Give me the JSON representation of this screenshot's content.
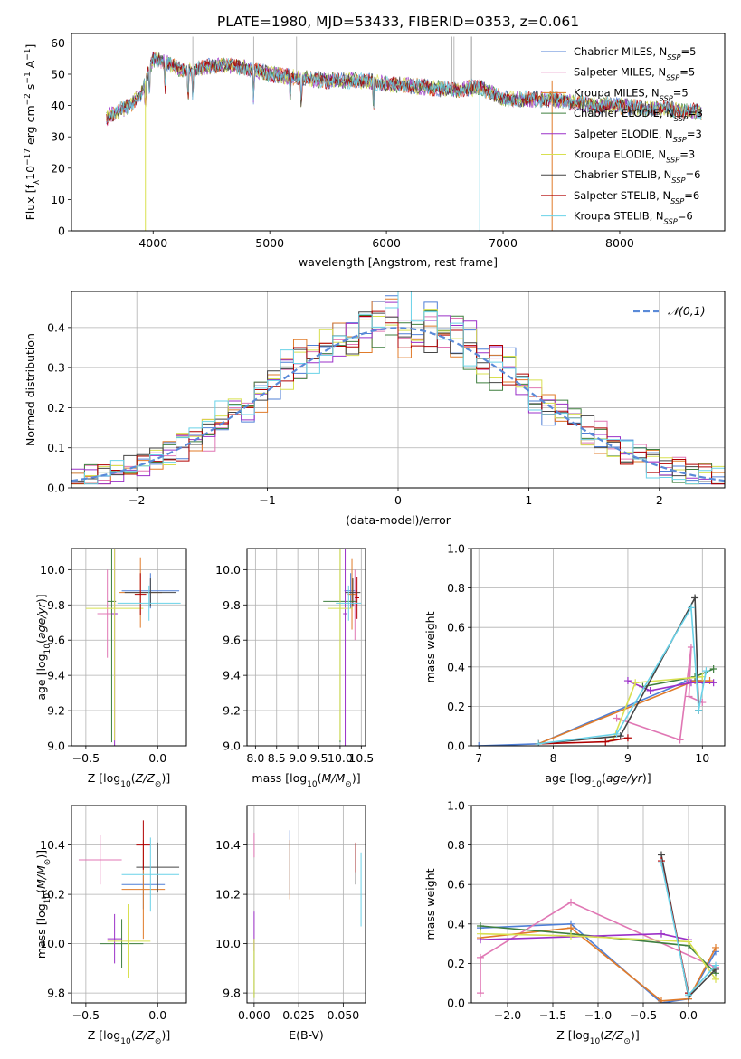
{
  "figure_title": "PLATE=1980, MJD=53433, FIBERID=0353, z=0.061",
  "model_colors": [
    "#4f7fd6",
    "#e077b4",
    "#e07b2a",
    "#3f7f3f",
    "#9b30c8",
    "#d8e050",
    "#444444",
    "#b00000",
    "#6ad2e8"
  ],
  "chart_data": [
    {
      "id": "spectrum",
      "type": "line",
      "title": "PLATE=1980, MJD=53433, FIBERID=0353, z=0.061",
      "xlabel": "wavelength [Angstrom, rest frame]",
      "ylabel": "Flux [f_λ10^-17 erg cm^-2 s^-1 A^-1]",
      "xlim": [
        3300,
        8900
      ],
      "ylim": [
        0,
        63
      ],
      "xticks": [
        4000,
        5000,
        6000,
        7000,
        8000
      ],
      "yticks": [
        0,
        10,
        20,
        30,
        40,
        50,
        60
      ],
      "legend_position": "upper right",
      "grid": false,
      "series": [
        {
          "name": "Chabrier MILES, N_SSP=5"
        },
        {
          "name": "Salpeter MILES, N_SSP=5"
        },
        {
          "name": "Kroupa MILES, N_SSP=5"
        },
        {
          "name": "Chabrier ELODIE, N_SSP=3"
        },
        {
          "name": "Salpeter ELODIE, N_SSP=3"
        },
        {
          "name": "Kroupa ELODIE, N_SSP=3"
        },
        {
          "name": "Chabrier STELIB, N_SSP=6"
        },
        {
          "name": "Salpeter STELIB, N_SSP=6"
        },
        {
          "name": "Kroupa STELIB, N_SSP=6"
        }
      ],
      "continuum": {
        "x": [
          3600,
          3700,
          3800,
          3900,
          4000,
          4100,
          4200,
          4300,
          4400,
          4600,
          4800,
          5000,
          5200,
          5500,
          5800,
          6000,
          6300,
          6600,
          6800,
          7000,
          7200,
          7400,
          7600,
          7800,
          8000,
          8200,
          8400,
          8600,
          8700
        ],
        "y": [
          36,
          38,
          40,
          44,
          55,
          54,
          52,
          51,
          52,
          53,
          52,
          50,
          49,
          48,
          48,
          47,
          46,
          45,
          46,
          42,
          42,
          42,
          41,
          40,
          40,
          39,
          39,
          38,
          38
        ]
      }
    },
    {
      "id": "residuals",
      "type": "histogram",
      "xlabel": "(data-model)/error",
      "ylabel": "Normed distribution",
      "xlim": [
        -2.5,
        2.5
      ],
      "ylim": [
        0,
        0.49
      ],
      "xticks": [
        -2,
        -1,
        0,
        1,
        2
      ],
      "yticks": [
        0.0,
        0.1,
        0.2,
        0.3,
        0.4
      ],
      "grid": true,
      "legend": "𝒩(0,1)",
      "legend_position": "upper right",
      "normal_curve": {
        "mean": 0,
        "sigma": 1,
        "color": "#5a8ad8"
      },
      "bins": {
        "start": -2.5,
        "width": 0.1
      }
    },
    {
      "id": "age_vs_Z",
      "type": "errorbar",
      "xlabel": "Z [log10(Z/Z_sun)]",
      "ylabel": "age [log10(age/yr)]",
      "xlim": [
        -0.6,
        0.2
      ],
      "ylim": [
        9.0,
        10.12
      ],
      "xticks": [
        -0.5,
        0.0
      ],
      "yticks": [
        9.0,
        9.2,
        9.4,
        9.6,
        9.8,
        10.0
      ],
      "grid": true,
      "points": [
        {
          "x": -0.05,
          "y": 9.88,
          "xerr": 0.2,
          "yerr": 0.1
        },
        {
          "x": -0.35,
          "y": 9.75,
          "xerr": 0.07,
          "yerr": 0.25
        },
        {
          "x": -0.12,
          "y": 9.87,
          "xerr": 0.15,
          "yerr": 0.2
        },
        {
          "x": -0.32,
          "y": 9.82,
          "xerr": 0.03,
          "yerr": 0.8
        },
        {
          "x": -0.3,
          "y": 9.75,
          "xerr": 0.02,
          "yerr": 0.75
        },
        {
          "x": -0.3,
          "y": 9.78,
          "xerr": 0.2,
          "yerr": 0.75
        },
        {
          "x": -0.05,
          "y": 9.87,
          "xerr": 0.18,
          "yerr": 0.08
        },
        {
          "x": -0.12,
          "y": 9.86,
          "xerr": 0.04,
          "yerr": 0.12
        },
        {
          "x": -0.06,
          "y": 9.81,
          "xerr": 0.22,
          "yerr": 0.1
        }
      ]
    },
    {
      "id": "age_vs_mass",
      "type": "errorbar",
      "xlabel": "mass [log10(M/M_sun)]",
      "xlim": [
        7.8,
        10.6
      ],
      "ylim": [
        9.0,
        10.12
      ],
      "xticks": [
        8.0,
        8.5,
        9.0,
        9.5,
        10.0,
        10.5
      ],
      "yticks": [
        9.0,
        9.2,
        9.4,
        9.6,
        9.8,
        10.0
      ],
      "grid": true,
      "points": [
        {
          "x": 10.25,
          "y": 9.88,
          "xerr": 0.15,
          "yerr": 0.1
        },
        {
          "x": 10.35,
          "y": 9.8,
          "xerr": 0.05,
          "yerr": 0.2
        },
        {
          "x": 10.28,
          "y": 9.86,
          "xerr": 0.1,
          "yerr": 0.2
        },
        {
          "x": 10.0,
          "y": 9.82,
          "xerr": 0.4,
          "yerr": 0.8
        },
        {
          "x": 10.12,
          "y": 9.75,
          "xerr": 0.05,
          "yerr": 0.75
        },
        {
          "x": 10.0,
          "y": 9.78,
          "xerr": 0.3,
          "yerr": 0.75
        },
        {
          "x": 10.3,
          "y": 9.87,
          "xerr": 0.18,
          "yerr": 0.08
        },
        {
          "x": 10.4,
          "y": 9.84,
          "xerr": 0.05,
          "yerr": 0.12
        },
        {
          "x": 10.2,
          "y": 9.81,
          "xerr": 0.3,
          "yerr": 0.1
        }
      ]
    },
    {
      "id": "massweight_vs_age",
      "type": "line",
      "xlabel": "age [log10(age/yr)]",
      "ylabel": "mass weight",
      "xlim": [
        6.9,
        10.3
      ],
      "ylim": [
        0.0,
        1.0
      ],
      "xticks": [
        7,
        8,
        9,
        10
      ],
      "yticks": [
        0.0,
        0.2,
        0.4,
        0.6,
        0.8,
        1.0
      ],
      "grid": true,
      "series": [
        {
          "x": [
            7.0,
            7.8,
            9.8,
            10.0
          ],
          "y": [
            0.0,
            0.01,
            0.33,
            0.33
          ]
        },
        {
          "x": [
            8.85,
            9.7,
            9.85,
            9.82,
            10.0
          ],
          "y": [
            0.14,
            0.03,
            0.5,
            0.25,
            0.22
          ]
        },
        {
          "x": [
            7.8,
            9.9,
            10.1
          ],
          "y": [
            0.01,
            0.33,
            0.33
          ]
        },
        {
          "x": [
            9.2,
            9.9,
            10.15
          ],
          "y": [
            0.3,
            0.35,
            0.39
          ]
        },
        {
          "x": [
            9.0,
            9.3,
            9.85,
            10.15
          ],
          "y": [
            0.33,
            0.28,
            0.32,
            0.32
          ]
        },
        {
          "x": [
            8.8,
            9.1,
            10.0
          ],
          "y": [
            0.03,
            0.32,
            0.35
          ]
        },
        {
          "x": [
            7.8,
            8.9,
            9.9,
            9.95
          ],
          "y": [
            0.01,
            0.05,
            0.75,
            0.18
          ]
        },
        {
          "x": [
            7.8,
            8.7,
            9.0
          ],
          "y": [
            0.01,
            0.02,
            0.04
          ]
        },
        {
          "x": [
            7.8,
            8.85,
            9.85,
            9.95,
            10.05
          ],
          "y": [
            0.01,
            0.06,
            0.7,
            0.18,
            0.38
          ]
        }
      ]
    },
    {
      "id": "mass_vs_Z",
      "type": "errorbar",
      "xlabel": "Z [log10(Z/Z_sun)]",
      "ylabel": "mass [log10(M/M_sun)]",
      "xlim": [
        -0.6,
        0.2
      ],
      "ylim": [
        9.76,
        10.56
      ],
      "xticks": [
        -0.5,
        0.0
      ],
      "yticks": [
        9.8,
        10.0,
        10.2,
        10.4
      ],
      "grid": true,
      "points": [
        {
          "x": -0.1,
          "y": 10.24,
          "xerr": 0.15,
          "yerr": 0.1
        },
        {
          "x": -0.4,
          "y": 10.34,
          "xerr": 0.15,
          "yerr": 0.1
        },
        {
          "x": -0.1,
          "y": 10.22,
          "xerr": 0.15,
          "yerr": 0.2
        },
        {
          "x": -0.25,
          "y": 10.0,
          "xerr": 0.15,
          "yerr": 0.1
        },
        {
          "x": -0.3,
          "y": 10.02,
          "xerr": 0.05,
          "yerr": 0.1
        },
        {
          "x": -0.2,
          "y": 10.01,
          "xerr": 0.15,
          "yerr": 0.15
        },
        {
          "x": 0.0,
          "y": 10.31,
          "xerr": 0.15,
          "yerr": 0.1
        },
        {
          "x": -0.1,
          "y": 10.4,
          "xerr": 0.05,
          "yerr": 0.1
        },
        {
          "x": -0.05,
          "y": 10.28,
          "xerr": 0.2,
          "yerr": 0.15
        }
      ]
    },
    {
      "id": "mass_vs_EBV",
      "type": "errorbar",
      "xlabel": "E(B-V)",
      "xlim": [
        -0.004,
        0.0625
      ],
      "ylim": [
        9.76,
        10.56
      ],
      "xticks": [
        0.0,
        0.025,
        0.05
      ],
      "yticks": [
        9.8,
        10.0,
        10.2,
        10.4
      ],
      "grid": true,
      "points": [
        {
          "x": 0.02,
          "y": 10.33,
          "yerr": 0.13
        },
        {
          "x": 0.0,
          "y": 10.4,
          "yerr": 0.05
        },
        {
          "x": 0.02,
          "y": 10.3,
          "yerr": 0.12
        },
        {
          "x": 0.0,
          "y": 9.9,
          "yerr": 0.12
        },
        {
          "x": 0.0,
          "y": 10.05,
          "yerr": 0.08
        },
        {
          "x": 0.0,
          "y": 9.9,
          "yerr": 0.12
        },
        {
          "x": 0.057,
          "y": 10.32,
          "yerr": 0.08
        },
        {
          "x": 0.057,
          "y": 10.35,
          "yerr": 0.06
        },
        {
          "x": 0.06,
          "y": 10.22,
          "yerr": 0.15
        }
      ]
    },
    {
      "id": "massweight_vs_Z",
      "type": "line",
      "xlabel": "Z [log10(Z/Z_sun)]",
      "ylabel": "mass weight",
      "xlim": [
        -2.4,
        0.4
      ],
      "ylim": [
        0.0,
        1.0
      ],
      "xticks": [
        -2.0,
        -1.5,
        -1.0,
        -0.5,
        0.0
      ],
      "yticks": [
        0.0,
        0.2,
        0.4,
        0.6,
        0.8,
        1.0
      ],
      "grid": true,
      "series": [
        {
          "x": [
            -2.3,
            -1.3,
            -0.3,
            0.0,
            0.3
          ],
          "y": [
            0.38,
            0.4,
            0.0,
            0.02,
            0.26
          ]
        },
        {
          "x": [
            -2.3,
            -2.3,
            -1.3,
            0.3
          ],
          "y": [
            0.05,
            0.23,
            0.51,
            0.18
          ]
        },
        {
          "x": [
            -2.3,
            -1.3,
            -0.3,
            0.0,
            0.3
          ],
          "y": [
            0.33,
            0.38,
            0.01,
            0.02,
            0.28
          ]
        },
        {
          "x": [
            -2.3,
            -1.3,
            0.0,
            0.3
          ],
          "y": [
            0.39,
            0.35,
            0.29,
            0.15
          ]
        },
        {
          "x": [
            -2.3,
            -0.3,
            0.0
          ],
          "y": [
            0.32,
            0.35,
            0.32
          ]
        },
        {
          "x": [
            -2.3,
            -1.3,
            0.0,
            0.3
          ],
          "y": [
            0.35,
            0.34,
            0.31,
            0.12
          ]
        },
        {
          "x": [
            -0.3,
            0.0,
            0.3
          ],
          "y": [
            0.75,
            0.03,
            0.17
          ]
        },
        {
          "x": [
            -0.3,
            0.0
          ],
          "y": [
            0.72,
            0.05
          ]
        },
        {
          "x": [
            -0.3,
            0.0,
            0.3
          ],
          "y": [
            0.71,
            0.04,
            0.19
          ]
        }
      ]
    }
  ]
}
